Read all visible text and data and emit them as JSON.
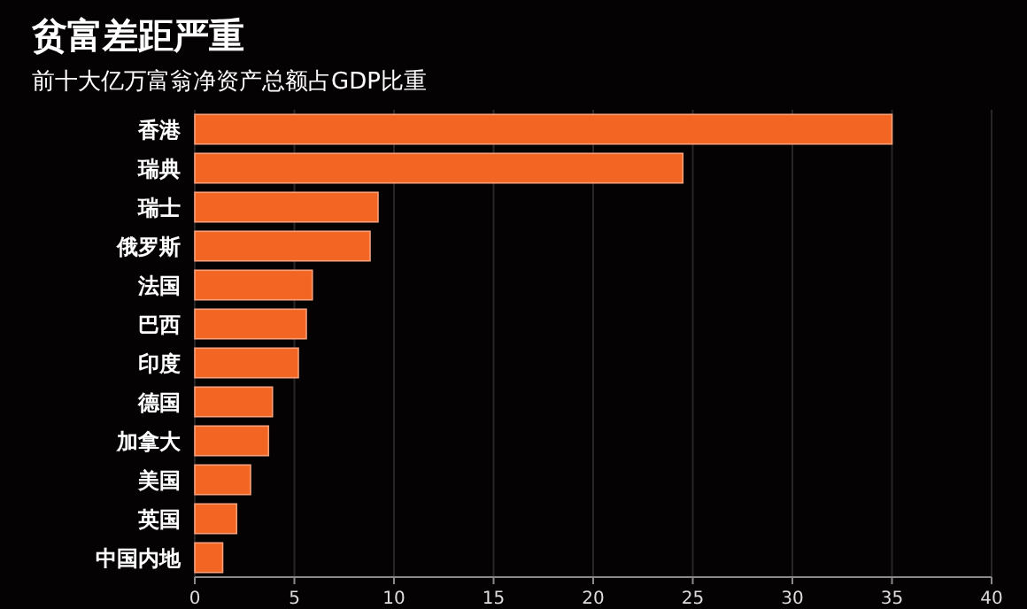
{
  "chart_data": {
    "type": "bar",
    "orientation": "horizontal",
    "title": "贫富差距严重",
    "subtitle": "前十大亿万富翁净资产总额占GDP比重",
    "categories": [
      "香港",
      "瑞典",
      "瑞士",
      "俄罗斯",
      "法国",
      "巴西",
      "印度",
      "德国",
      "加拿大",
      "美国",
      "英国",
      "中国内地"
    ],
    "values": [
      35,
      24.5,
      9.2,
      8.8,
      5.9,
      5.6,
      5.2,
      3.9,
      3.7,
      2.8,
      2.1,
      1.4
    ],
    "color": "#f26522",
    "xlim": [
      0,
      40
    ],
    "xticks": [
      0,
      5,
      10,
      15,
      20,
      25,
      30,
      35,
      40
    ],
    "grid": "x"
  }
}
